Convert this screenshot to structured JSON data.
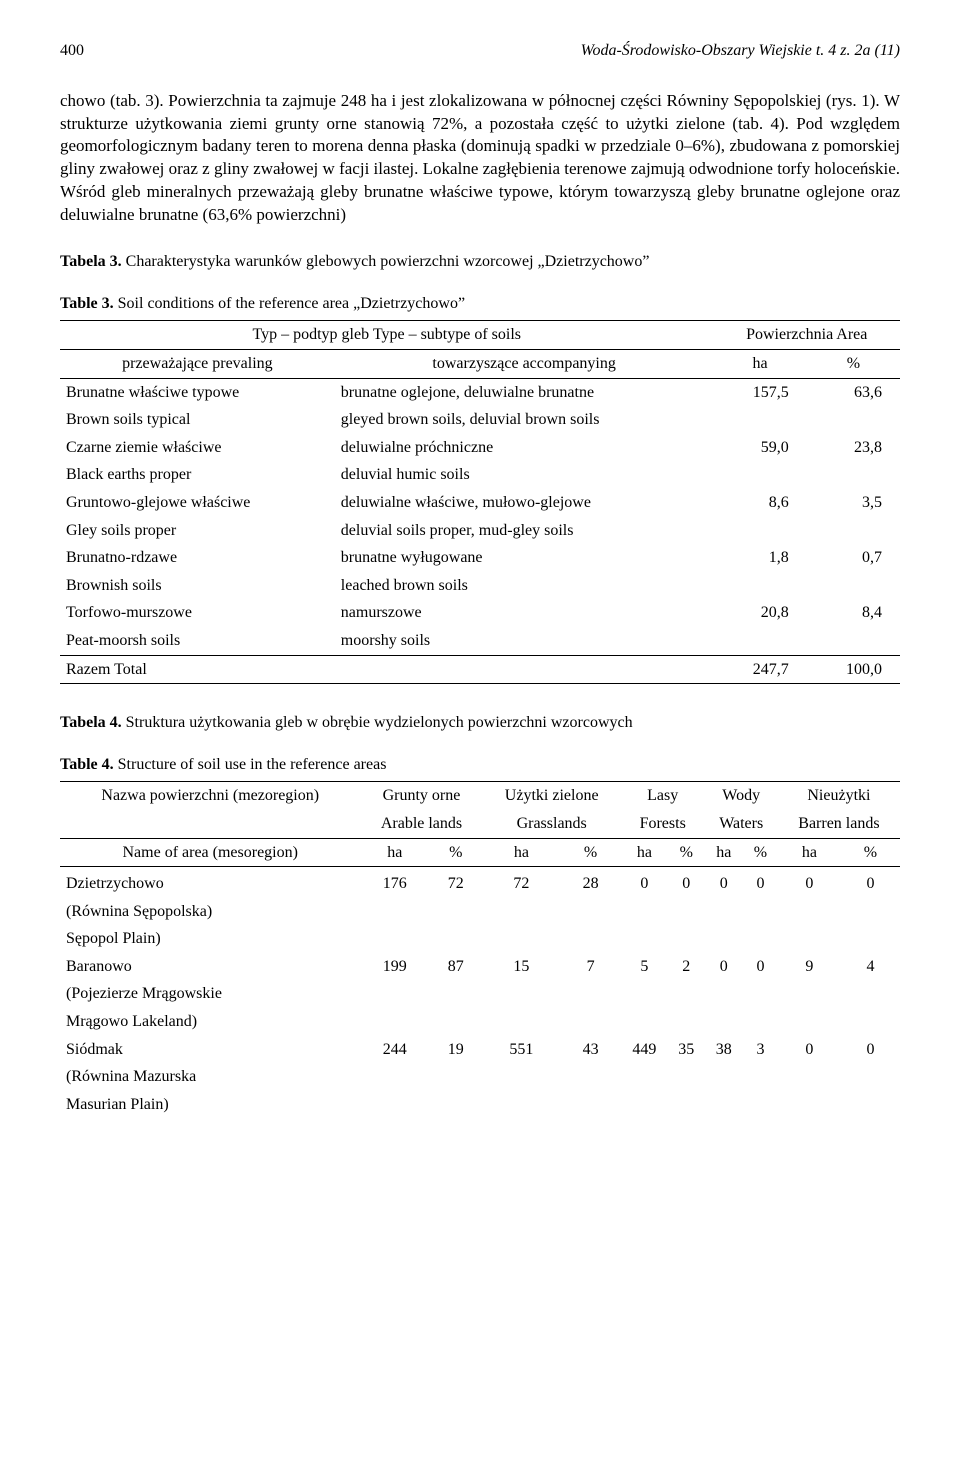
{
  "header": {
    "page_number": "400",
    "journal": "Woda-Środowisko-Obszary Wiejskie t. 4 z. 2a (11)"
  },
  "body_paragraph": "chowo (tab. 3). Powierzchnia ta zajmuje 248 ha i jest zlokalizowana w północnej części Równiny Sępopolskiej (rys. 1). W strukturze użytkowania ziemi grunty orne stanowią 72%, a pozostała część to użytki zielone (tab. 4). Pod względem geomorfologicznym badany teren to morena denna płaska (dominują spadki w przedziale 0–6%), zbudowana z pomorskiej gliny zwałowej oraz z gliny zwałowej w facji ilastej. Lokalne zagłębienia terenowe zajmują odwodnione torfy holoceńskie. Wśród gleb mineralnych przeważają gleby brunatne właściwe typowe, którym towarzyszą gleby brunatne oglejone oraz deluwialne brunatne (63,6% powierzchni)",
  "table3": {
    "caption_pl_label": "Tabela 3.",
    "caption_pl": " Charakterystyka warunków glebowych powierzchni wzorcowej „Dzietrzychowo”",
    "caption_en_label": "Table 3.",
    "caption_en": " Soil conditions of the reference area „Dzietrzychowo”",
    "head_type": "Typ – podtyp gleb   Type – subtype of soils",
    "head_area": "Powierzchnia   Area",
    "head_prev": "przeważające   prevaling",
    "head_acc": "towarzyszące   accompanying",
    "head_ha": "ha",
    "head_pct": "%",
    "rows": [
      {
        "prev_pl": "Brunatne właściwe typowe",
        "prev_en": "Brown soils typical",
        "acc_pl": "brunatne oglejone, deluwialne brunatne",
        "acc_en": "gleyed brown soils, deluvial brown soils",
        "ha": "157,5",
        "pct": "63,6"
      },
      {
        "prev_pl": "Czarne ziemie właściwe",
        "prev_en": "Black earths proper",
        "acc_pl": "deluwialne próchniczne",
        "acc_en": "deluvial humic soils",
        "ha": "59,0",
        "pct": "23,8"
      },
      {
        "prev_pl": "Gruntowo-glejowe właściwe",
        "prev_en": "Gley soils proper",
        "acc_pl": "deluwialne właściwe, mułowo-glejowe",
        "acc_en": "deluvial soils proper, mud-gley soils",
        "ha": "8,6",
        "pct": "3,5"
      },
      {
        "prev_pl": "Brunatno-rdzawe",
        "prev_en": "Brownish soils",
        "acc_pl": "brunatne wyługowane",
        "acc_en": "leached brown soils",
        "ha": "1,8",
        "pct": "0,7"
      },
      {
        "prev_pl": "Torfowo-murszowe",
        "prev_en": "Peat-moorsh soils",
        "acc_pl": "namurszowe",
        "acc_en": "moorshy soils",
        "ha": "20,8",
        "pct": "8,4"
      }
    ],
    "total_label": "Razem   Total",
    "total_ha": "247,7",
    "total_pct": "100,0"
  },
  "table4": {
    "caption_pl_label": "Tabela 4.",
    "caption_pl": " Struktura użytkowania gleb w obrębie wydzielonych powierzchni wzorcowych",
    "caption_en_label": "Table 4.",
    "caption_en": " Structure of soil use in the reference areas",
    "head_name_pl": "Nazwa powierzchni (mezoregion)",
    "head_name_en": "Name of area (mesoregion)",
    "cols": [
      {
        "pl": "Grunty orne",
        "en": "Arable lands"
      },
      {
        "pl": "Użytki zielone",
        "en": "Grasslands"
      },
      {
        "pl": "Lasy",
        "en": "Forests"
      },
      {
        "pl": "Wody",
        "en": "Waters"
      },
      {
        "pl": "Nieużytki",
        "en": "Barren lands"
      }
    ],
    "sub_ha": "ha",
    "sub_pct": "%",
    "rows": [
      {
        "name_pl": "Dzietrzychowo",
        "name_sub1": "(Równina Sępopolska)",
        "name_sub2": "Sępopol Plain)",
        "v": [
          "176",
          "72",
          "72",
          "28",
          "0",
          "0",
          "0",
          "0",
          "0",
          "0"
        ]
      },
      {
        "name_pl": "Baranowo",
        "name_sub1": "(Pojezierze Mrągowskie",
        "name_sub2": "Mrągowo Lakeland)",
        "v": [
          "199",
          "87",
          "15",
          "7",
          "5",
          "2",
          "0",
          "0",
          "9",
          "4"
        ]
      },
      {
        "name_pl": "Siódmak",
        "name_sub1": "(Równina Mazurska",
        "name_sub2": "Masurian Plain)",
        "v": [
          "244",
          "19",
          "551",
          "43",
          "449",
          "35",
          "38",
          "3",
          "0",
          "0"
        ]
      }
    ]
  }
}
